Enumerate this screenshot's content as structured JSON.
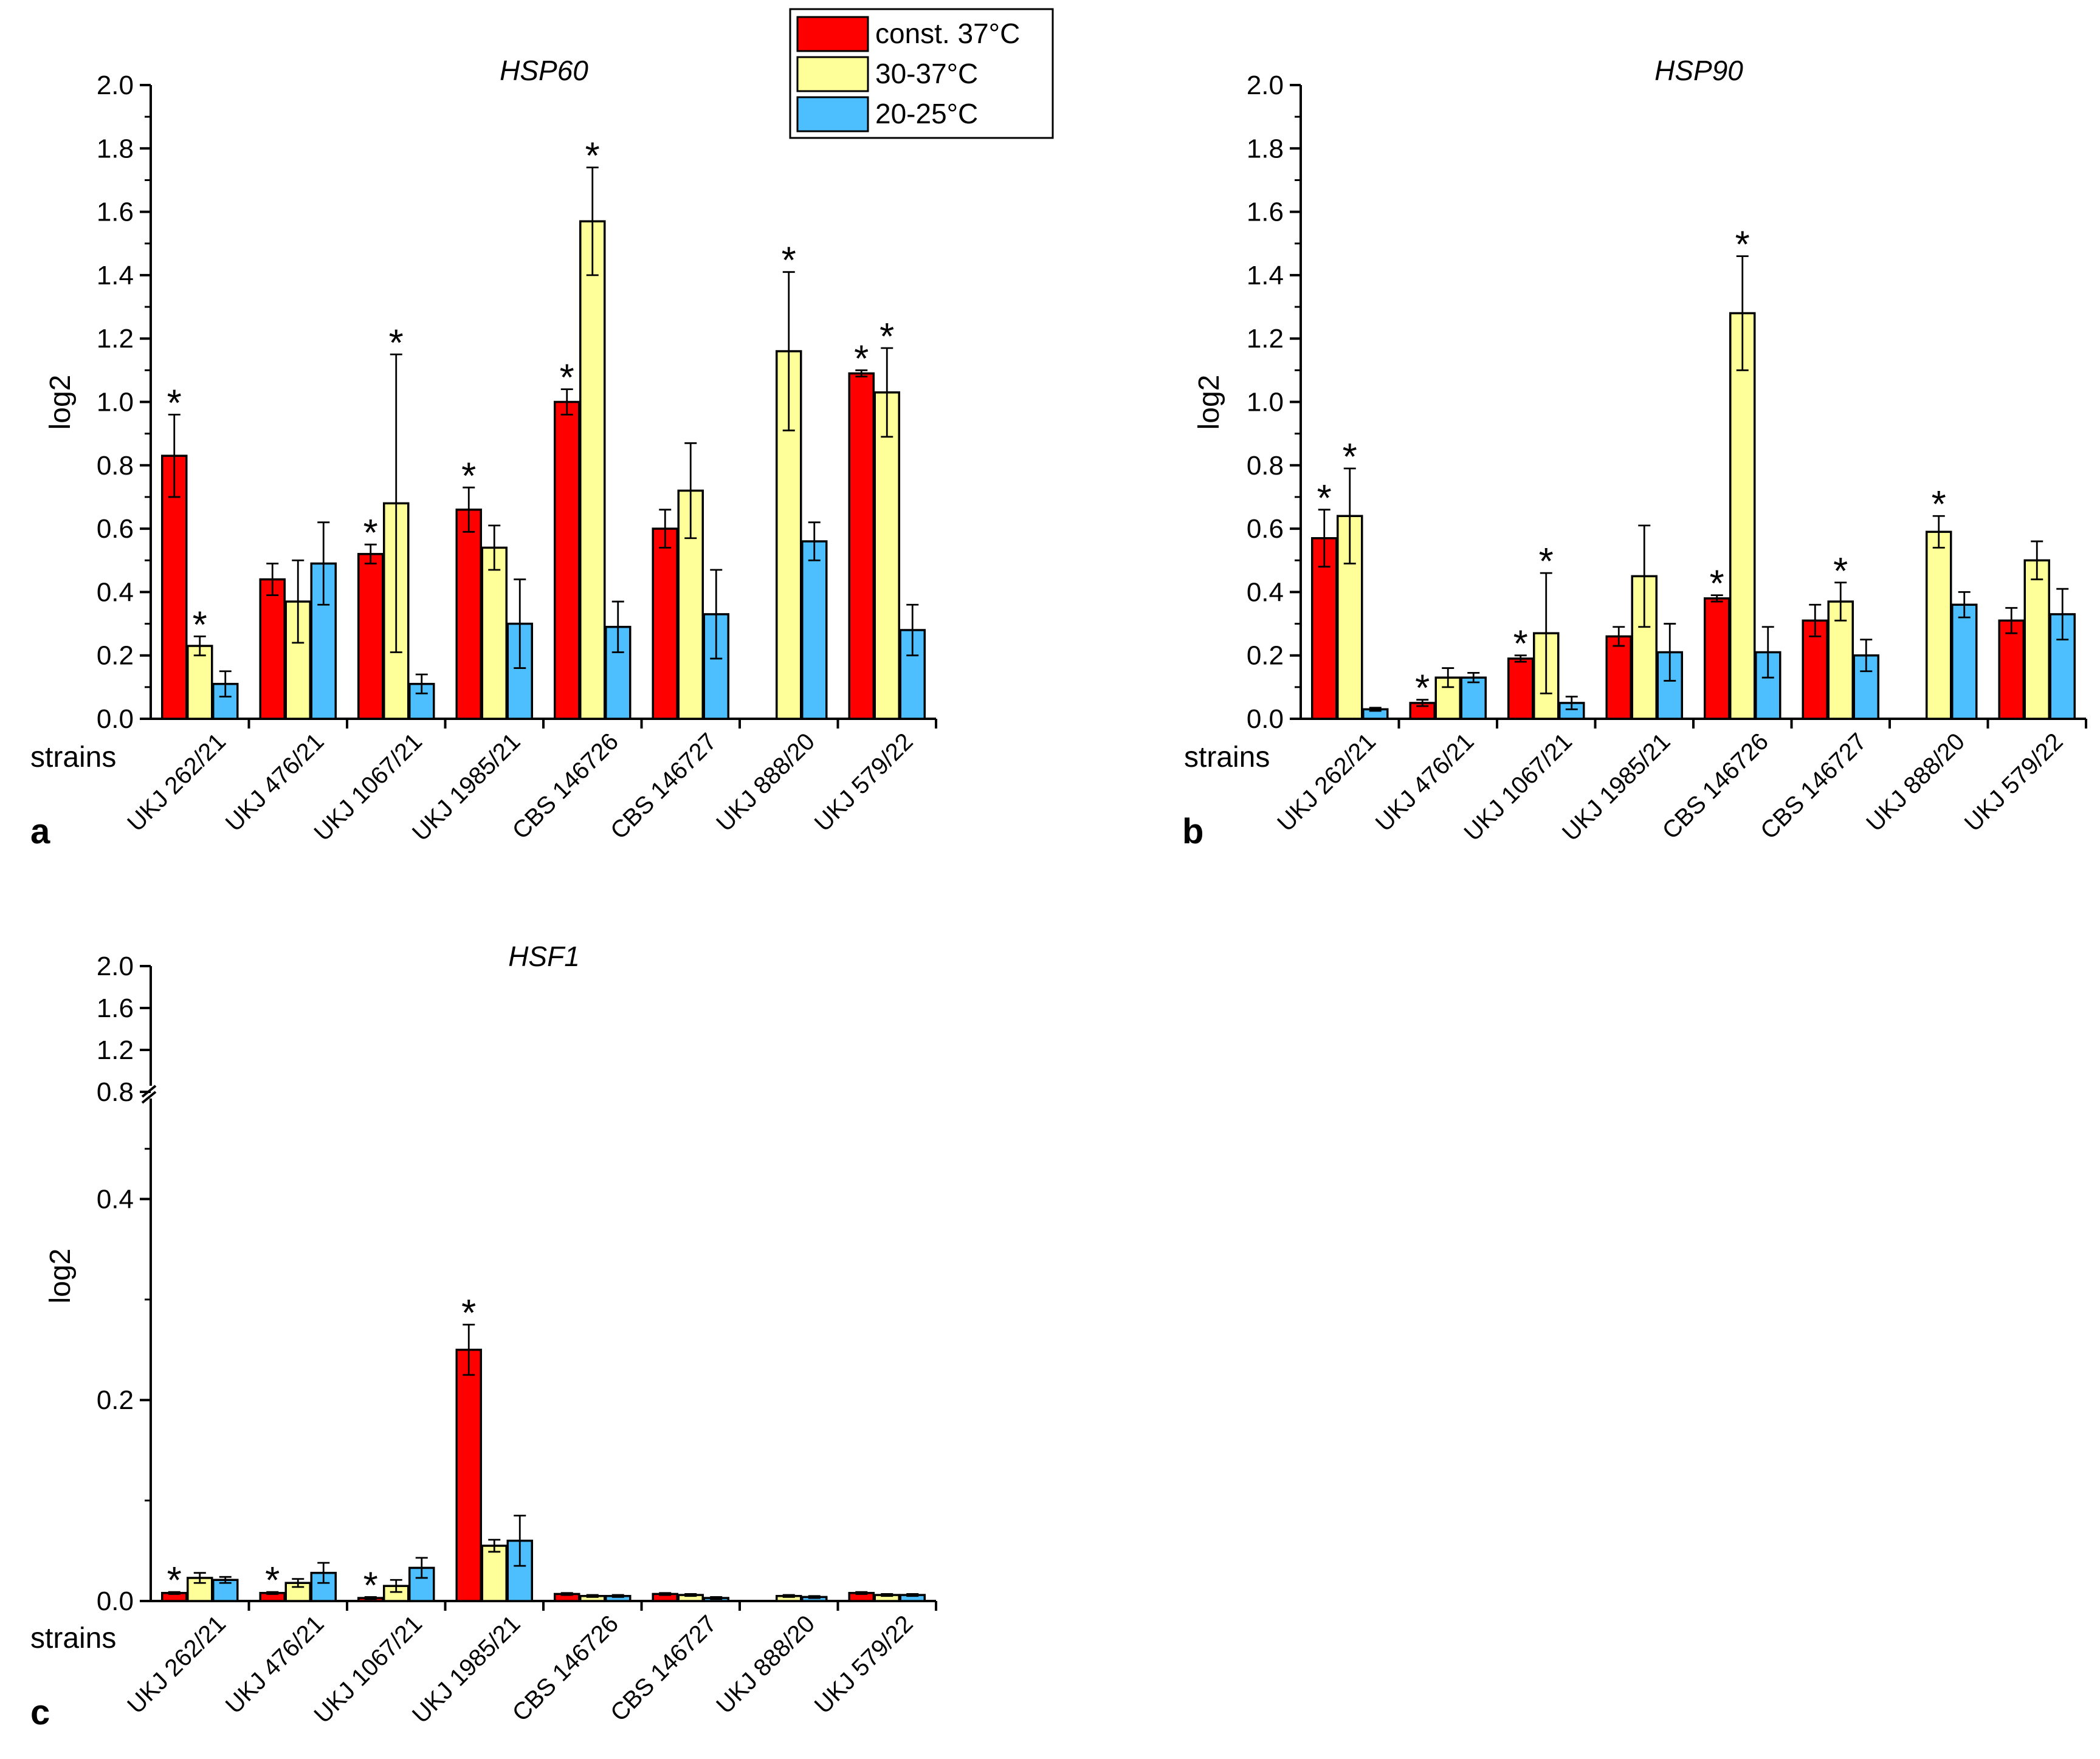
{
  "legend": {
    "entries": [
      {
        "label": "const. 37°C",
        "color": "#ff0000"
      },
      {
        "label": "30-37°C",
        "color": "#ffff99"
      },
      {
        "label": "20-25°C",
        "color": "#4dbfff"
      }
    ]
  },
  "chart_data": [
    {
      "type": "bar",
      "panel": "a",
      "title": "HSP60",
      "ylabel": "log2",
      "xlabel": "strains",
      "ylim": [
        0,
        2.0
      ],
      "yticks": [
        0.0,
        0.2,
        0.4,
        0.6,
        0.8,
        1.0,
        1.2,
        1.4,
        1.6,
        1.8,
        2.0
      ],
      "ytick_labels": [
        "0.0",
        "0.2",
        "0.4",
        "0.6",
        "0.8",
        "1.0",
        "1.2",
        "1.4",
        "1.6",
        "1.8",
        "2.0"
      ],
      "categories": [
        "UKJ 262/21",
        "UKJ 476/21",
        "UKJ 1067/21",
        "UKJ 1985/21",
        "CBS 146726",
        "CBS 146727",
        "UKJ 888/20",
        "UKJ 579/22"
      ],
      "series": [
        {
          "name": "const. 37°C",
          "values": [
            0.83,
            0.44,
            0.52,
            0.66,
            1.0,
            0.6,
            null,
            1.09
          ],
          "errors": [
            0.13,
            0.05,
            0.03,
            0.07,
            0.04,
            0.06,
            null,
            0.01
          ],
          "significant": [
            true,
            false,
            true,
            true,
            true,
            false,
            false,
            true
          ]
        },
        {
          "name": "30-37°C",
          "values": [
            0.23,
            0.37,
            0.68,
            0.54,
            1.57,
            0.72,
            1.16,
            1.03
          ],
          "errors": [
            0.03,
            0.13,
            0.47,
            0.07,
            0.17,
            0.15,
            0.25,
            0.14
          ],
          "significant": [
            true,
            false,
            true,
            false,
            true,
            false,
            true,
            true
          ]
        },
        {
          "name": "20-25°C",
          "values": [
            0.11,
            0.49,
            0.11,
            0.3,
            0.29,
            0.33,
            0.56,
            0.28
          ],
          "errors": [
            0.04,
            0.13,
            0.03,
            0.14,
            0.08,
            0.14,
            0.06,
            0.08
          ],
          "significant": [
            false,
            false,
            false,
            false,
            false,
            false,
            false,
            false
          ]
        }
      ]
    },
    {
      "type": "bar",
      "panel": "b",
      "title": "HSP90",
      "ylabel": "log2",
      "xlabel": "strains",
      "ylim": [
        0,
        2.0
      ],
      "yticks": [
        0.0,
        0.2,
        0.4,
        0.6,
        0.8,
        1.0,
        1.2,
        1.4,
        1.6,
        1.8,
        2.0
      ],
      "ytick_labels": [
        "0.0",
        "0.2",
        "0.4",
        "0.6",
        "0.8",
        "1.0",
        "1.2",
        "1.4",
        "1.6",
        "1.8",
        "2.0"
      ],
      "categories": [
        "UKJ 262/21",
        "UKJ 476/21",
        "UKJ 1067/21",
        "UKJ 1985/21",
        "CBS 146726",
        "CBS 146727",
        "UKJ 888/20",
        "UKJ 579/22"
      ],
      "series": [
        {
          "name": "const. 37°C",
          "values": [
            0.57,
            0.05,
            0.19,
            0.26,
            0.38,
            0.31,
            null,
            0.31
          ],
          "errors": [
            0.09,
            0.01,
            0.01,
            0.03,
            0.01,
            0.05,
            null,
            0.04
          ],
          "significant": [
            true,
            true,
            true,
            false,
            true,
            false,
            false,
            false
          ]
        },
        {
          "name": "30-37°C",
          "values": [
            0.64,
            0.13,
            0.27,
            0.45,
            1.28,
            0.37,
            0.59,
            0.5
          ],
          "errors": [
            0.15,
            0.03,
            0.19,
            0.16,
            0.18,
            0.06,
            0.05,
            0.06
          ],
          "significant": [
            true,
            false,
            true,
            false,
            true,
            true,
            true,
            false
          ]
        },
        {
          "name": "20-25°C",
          "values": [
            0.03,
            0.13,
            0.05,
            0.21,
            0.21,
            0.2,
            0.36,
            0.33
          ],
          "errors": [
            0.005,
            0.015,
            0.02,
            0.09,
            0.08,
            0.05,
            0.04,
            0.08
          ],
          "significant": [
            false,
            false,
            false,
            false,
            false,
            false,
            false,
            false
          ]
        }
      ]
    },
    {
      "type": "bar",
      "panel": "c",
      "title": "HSF1",
      "ylabel": "log2",
      "xlabel": "strains",
      "ylim": [
        0,
        0.5
      ],
      "ylim_upper": [
        0.8,
        2.0
      ],
      "yticks": [
        0.0,
        0.2,
        0.4
      ],
      "ytick_labels": [
        "0.0",
        "0.2",
        "0.4"
      ],
      "yticks_upper": [
        0.8,
        1.2,
        1.6,
        2.0
      ],
      "ytick_labels_upper": [
        "0.8",
        "1.2",
        "1.6",
        "2.0"
      ],
      "categories": [
        "UKJ 262/21",
        "UKJ 476/21",
        "UKJ 1067/21",
        "UKJ 1985/21",
        "CBS 146726",
        "CBS 146727",
        "UKJ 888/20",
        "UKJ 579/22"
      ],
      "series": [
        {
          "name": "const. 37°C",
          "values": [
            0.008,
            0.008,
            0.003,
            0.25,
            0.007,
            0.007,
            null,
            0.008
          ],
          "errors": [
            0.001,
            0.001,
            0.001,
            0.025,
            0.001,
            0.001,
            null,
            0.001
          ],
          "significant": [
            true,
            true,
            true,
            true,
            false,
            false,
            false,
            false
          ]
        },
        {
          "name": "30-37°C",
          "values": [
            0.023,
            0.018,
            0.015,
            0.055,
            0.005,
            0.006,
            0.005,
            0.006
          ],
          "errors": [
            0.005,
            0.004,
            0.006,
            0.006,
            0.001,
            0.001,
            0.001,
            0.001
          ],
          "significant": [
            false,
            false,
            false,
            false,
            false,
            false,
            false,
            false
          ]
        },
        {
          "name": "20-25°C",
          "values": [
            0.021,
            0.028,
            0.033,
            0.06,
            0.005,
            0.003,
            0.004,
            0.006
          ],
          "errors": [
            0.003,
            0.01,
            0.01,
            0.025,
            0.001,
            0.001,
            0.001,
            0.001
          ],
          "significant": [
            false,
            false,
            false,
            false,
            false,
            false,
            false,
            false
          ]
        }
      ]
    }
  ]
}
